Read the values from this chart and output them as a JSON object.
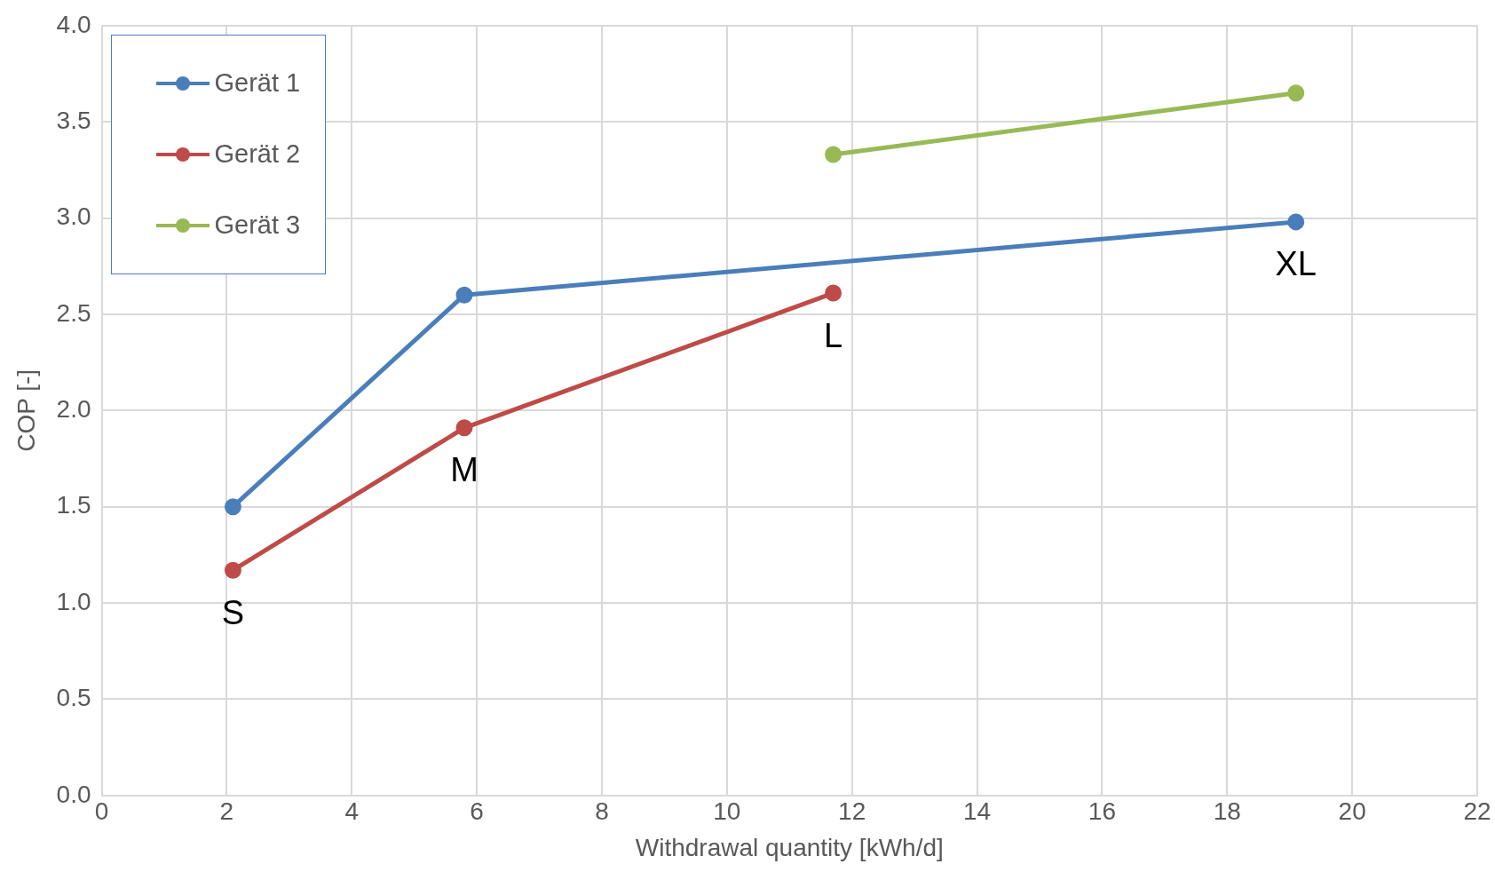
{
  "chart_data": {
    "type": "line",
    "xlabel": "Withdrawal quantity [kWh/d]",
    "ylabel": "COP [-]",
    "xlim": [
      0,
      22
    ],
    "xticks": [
      0,
      2,
      4,
      6,
      8,
      10,
      12,
      14,
      16,
      18,
      20,
      22
    ],
    "ylim": [
      0,
      4
    ],
    "yticks": [
      {
        "value": 0,
        "label": "0.0"
      },
      {
        "value": 0.5,
        "label": "0.5"
      },
      {
        "value": 1,
        "label": "1.0"
      },
      {
        "value": 1.5,
        "label": "1.5"
      },
      {
        "value": 2,
        "label": "2.0"
      },
      {
        "value": 2.5,
        "label": "2.5"
      },
      {
        "value": 3,
        "label": "3.0"
      },
      {
        "value": 3.5,
        "label": "3.5"
      },
      {
        "value": 4,
        "label": "4.0"
      }
    ],
    "grid": true,
    "legend": "top left",
    "marker": "circle",
    "line_style": "solid",
    "series": [
      {
        "name": "Gerät 1",
        "color": "#4a7ebb",
        "x": [
          2.1,
          5.8,
          19.1
        ],
        "values": [
          1.5,
          2.6,
          2.98
        ]
      },
      {
        "name": "Gerät 2",
        "color": "#be4b48",
        "x": [
          2.1,
          5.8,
          11.7
        ],
        "values": [
          1.17,
          1.91,
          2.61
        ]
      },
      {
        "name": "Gerät 3",
        "color": "#98b954",
        "x": [
          11.7,
          19.1
        ],
        "values": [
          3.33,
          3.65
        ]
      }
    ],
    "annotations": [
      {
        "text": "S",
        "x": 2.1,
        "y": 1.17
      },
      {
        "text": "M",
        "x": 5.8,
        "y": 1.91
      },
      {
        "text": "L",
        "x": 11.7,
        "y": 2.61
      },
      {
        "text": "XL",
        "x": 19.1,
        "y": 2.98
      }
    ]
  }
}
